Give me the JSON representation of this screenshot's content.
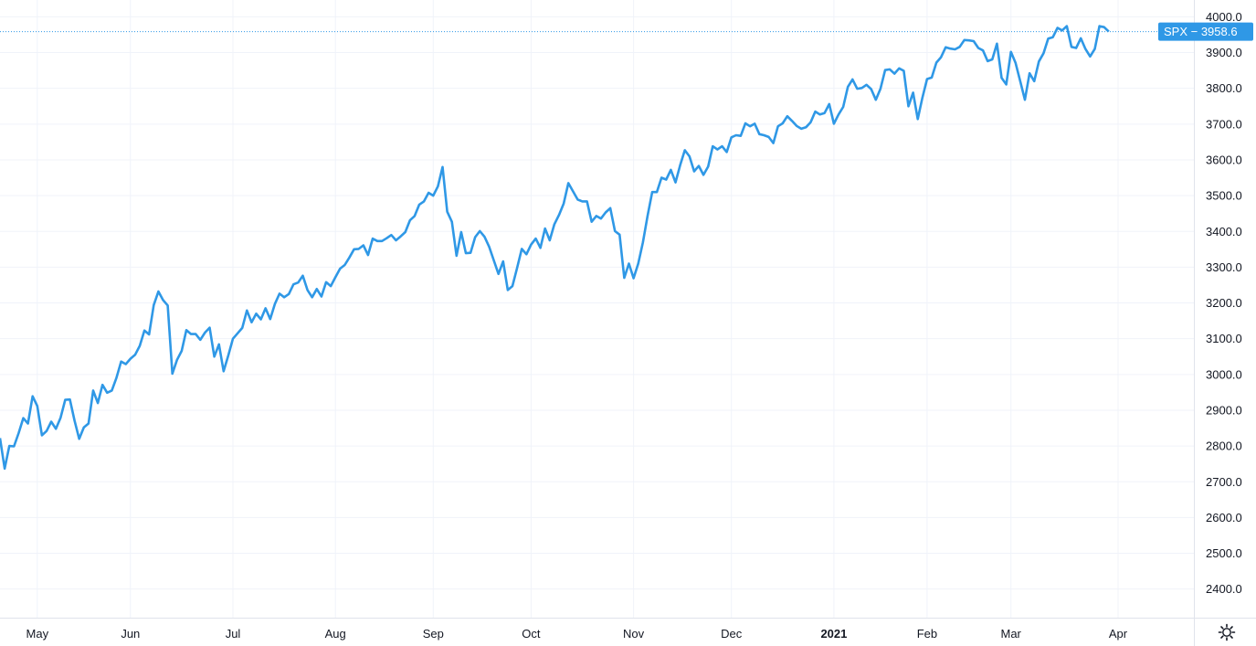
{
  "chart_data": {
    "type": "line",
    "series": [
      {
        "name": "SPX",
        "color": "#2f98e6",
        "y": [
          2822,
          2737,
          2800,
          2799,
          2836,
          2878,
          2863,
          2939,
          2912,
          2830,
          2842,
          2868,
          2848,
          2879,
          2929,
          2930,
          2871,
          2820,
          2852,
          2863,
          2955,
          2920,
          2971,
          2949,
          2955,
          2991,
          3036,
          3029,
          3044,
          3055,
          3080,
          3123,
          3112,
          3194,
          3232,
          3208,
          3193,
          3002,
          3041,
          3066,
          3124,
          3113,
          3113,
          3097,
          3117,
          3131,
          3050,
          3084,
          3009,
          3053,
          3100,
          3115,
          3130,
          3179,
          3146,
          3170,
          3154,
          3185,
          3155,
          3197,
          3226,
          3216,
          3225,
          3252,
          3257,
          3276,
          3236,
          3216,
          3239,
          3218,
          3258,
          3247,
          3272,
          3296,
          3306,
          3327,
          3350,
          3351,
          3361,
          3334,
          3380,
          3373,
          3373,
          3381,
          3390,
          3375,
          3386,
          3398,
          3431,
          3443,
          3475,
          3484,
          3508,
          3500,
          3526,
          3580,
          3455,
          3427,
          3332,
          3398,
          3339,
          3340,
          3384,
          3401,
          3385,
          3357,
          3319,
          3281,
          3316,
          3236,
          3247,
          3298,
          3351,
          3336,
          3363,
          3380,
          3354,
          3408,
          3375,
          3420,
          3446,
          3478,
          3535,
          3512,
          3489,
          3484,
          3484,
          3427,
          3443,
          3436,
          3453,
          3465,
          3401,
          3391,
          3270,
          3310,
          3269,
          3310,
          3369,
          3443,
          3510,
          3510,
          3550,
          3545,
          3572,
          3537,
          3585,
          3627,
          3610,
          3568,
          3583,
          3558,
          3581,
          3638,
          3629,
          3638,
          3622,
          3663,
          3669,
          3667,
          3702,
          3694,
          3701,
          3672,
          3669,
          3664,
          3647,
          3694,
          3702,
          3722,
          3709,
          3695,
          3687,
          3691,
          3705,
          3735,
          3727,
          3731,
          3756,
          3701,
          3727,
          3748,
          3804,
          3825,
          3799,
          3801,
          3810,
          3798,
          3768,
          3799,
          3851,
          3853,
          3841,
          3856,
          3849,
          3750,
          3788,
          3714,
          3774,
          3826,
          3830,
          3872,
          3887,
          3915,
          3911,
          3909,
          3916,
          3935,
          3934,
          3932,
          3913,
          3906,
          3876,
          3881,
          3925,
          3829,
          3811,
          3902,
          3871,
          3820,
          3768,
          3842,
          3820,
          3875,
          3898,
          3939,
          3943,
          3969,
          3962,
          3974,
          3916,
          3913,
          3940,
          3910,
          3889,
          3910,
          3974,
          3971,
          3958.6
        ]
      }
    ],
    "x_ticks": [
      "May",
      "Jun",
      "Jul",
      "Aug",
      "Sep",
      "Oct",
      "Nov",
      "Dec",
      "2021",
      "Feb",
      "Mar",
      "Apr"
    ],
    "x_tick_index": [
      8,
      28,
      50,
      72,
      93,
      114,
      136,
      157,
      179,
      199,
      217,
      240
    ],
    "x_tick_bold": [
      false,
      false,
      false,
      false,
      false,
      false,
      false,
      false,
      true,
      false,
      false,
      false
    ],
    "y_ticks": [
      "4000.0",
      "3900.0",
      "3800.0",
      "3700.0",
      "3600.0",
      "3500.0",
      "3400.0",
      "3300.0",
      "3200.0",
      "3100.0",
      "3000.0",
      "2900.0",
      "2800.0",
      "2700.0",
      "2600.0",
      "2500.0",
      "2400.0"
    ],
    "ylim": [
      2320,
      4047
    ],
    "last_price_label": "SPX − 3958.6",
    "last_value": 3958.6,
    "grid": true
  },
  "controls": {
    "settings_icon": "gear-icon"
  },
  "colors": {
    "line": "#2f98e6",
    "badge": "#2f98e6",
    "grid": "#f0f3fa",
    "axis_border": "#e0e3eb",
    "text": "#131722"
  }
}
